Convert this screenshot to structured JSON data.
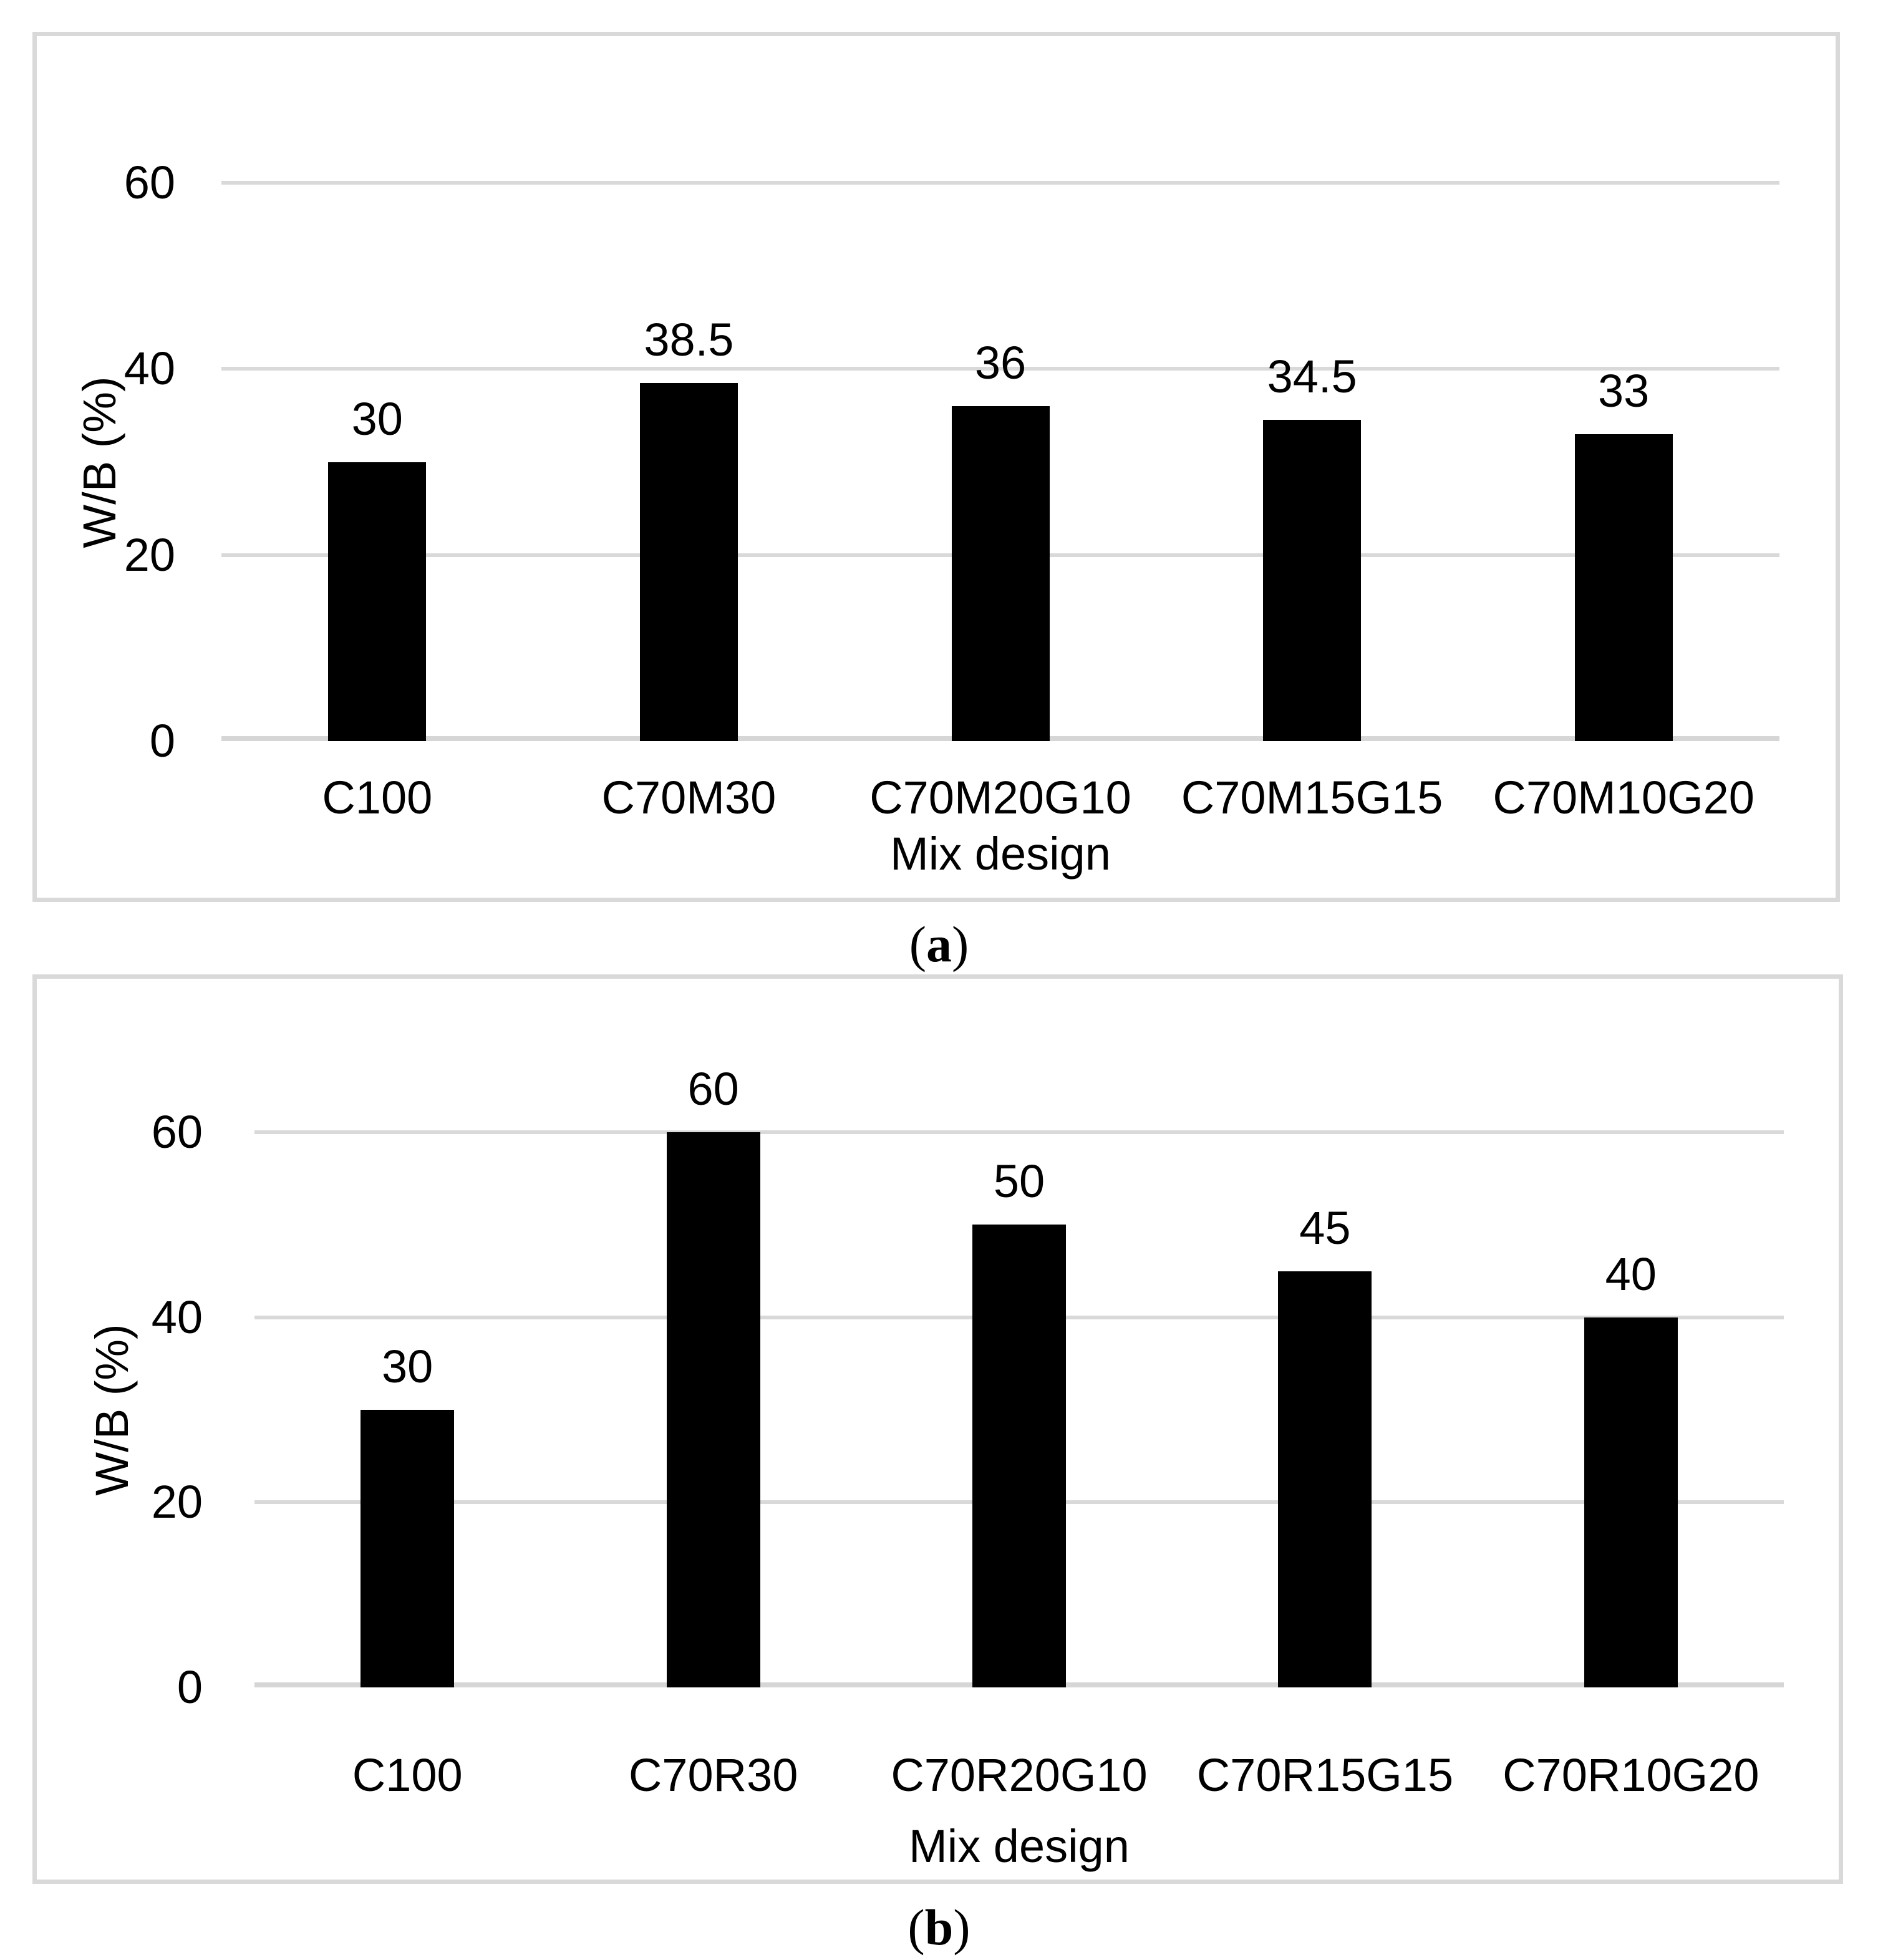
{
  "page": {
    "background": "#ffffff",
    "border_color": "#d9d9d9",
    "text_color": "#000000"
  },
  "chart_data": [
    {
      "id": "a",
      "type": "bar",
      "title": "",
      "xlabel": "Mix design",
      "ylabel": "W/B (%)",
      "categories": [
        "C100",
        "C70M30",
        "C70M20G10",
        "C70M15G15",
        "C70M10G20"
      ],
      "values": [
        30,
        38.5,
        36,
        34.5,
        33
      ],
      "data_labels": [
        "30",
        "38.5",
        "36",
        "34.5",
        "33"
      ],
      "yticks": [
        0,
        20,
        40,
        60
      ],
      "ylim": [
        0,
        60
      ],
      "grid": "horizontal",
      "legend": "none",
      "bar_color": "#000000",
      "gridline_color": "#d9d9d9",
      "axisline_color": "#d6d6d6",
      "caption": {
        "open": "(",
        "letter": "a",
        "close": ")"
      }
    },
    {
      "id": "b",
      "type": "bar",
      "title": "",
      "xlabel": "Mix design",
      "ylabel": "W/B (%)",
      "categories": [
        "C100",
        "C70R30",
        "C70R20G10",
        "C70R15G15",
        "C70R10G20"
      ],
      "values": [
        30,
        60,
        50,
        45,
        40
      ],
      "data_labels": [
        "30",
        "60",
        "50",
        "45",
        "40"
      ],
      "yticks": [
        0,
        20,
        40,
        60
      ],
      "ylim": [
        0,
        60
      ],
      "grid": "horizontal",
      "legend": "none",
      "bar_color": "#000000",
      "gridline_color": "#d9d9d9",
      "axisline_color": "#d6d6d6",
      "caption": {
        "open": "(",
        "letter": "b",
        "close": ")"
      }
    }
  ]
}
